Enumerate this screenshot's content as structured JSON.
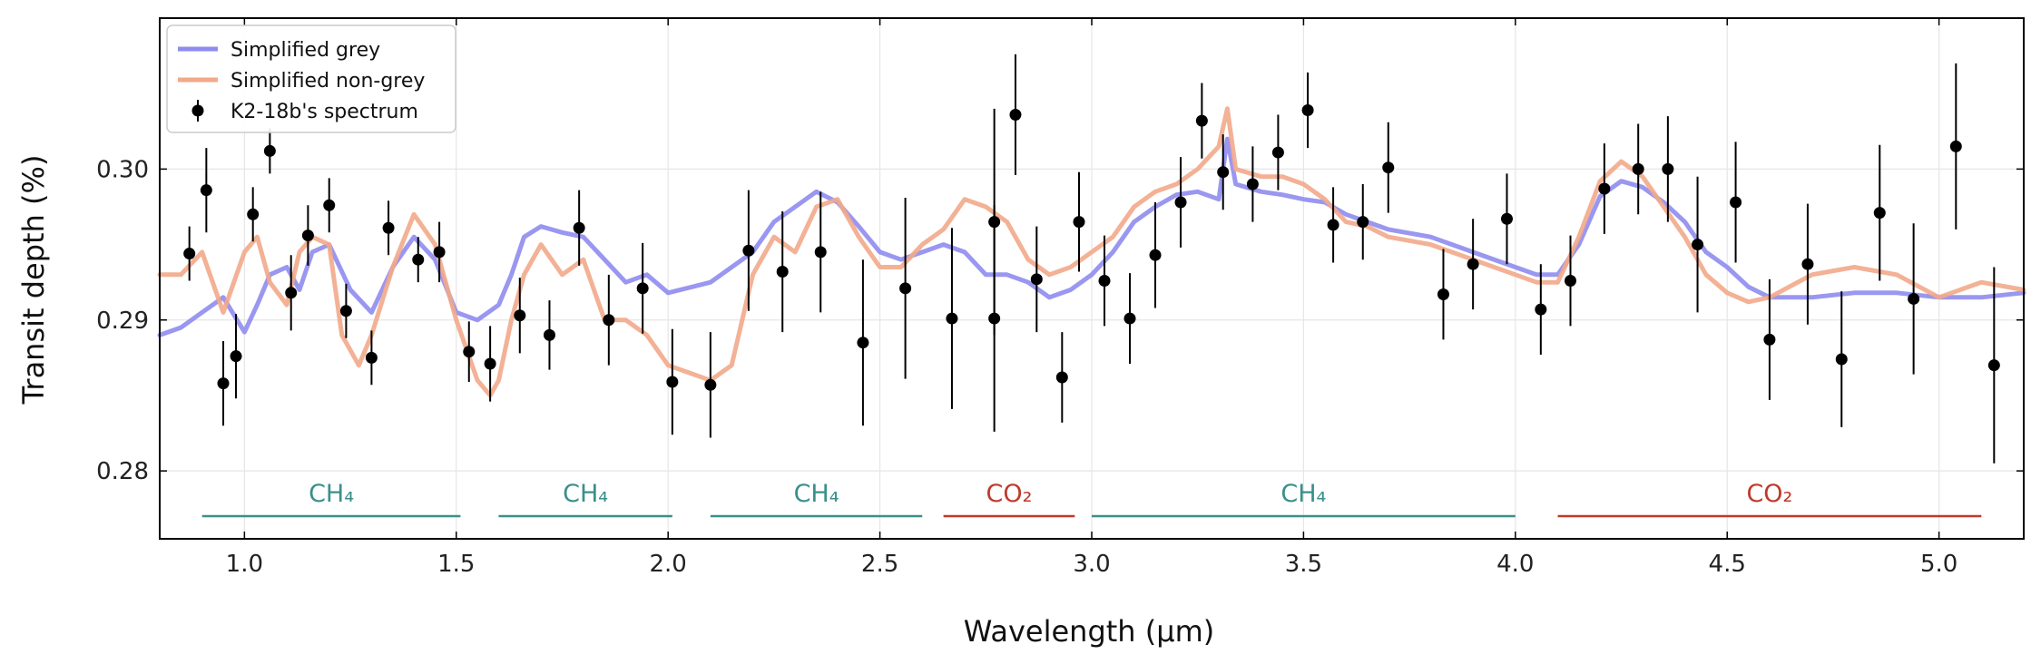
{
  "chart_data": {
    "type": "line",
    "title": "",
    "xlabel": "Wavelength (μm)",
    "ylabel": "Transit depth (%)",
    "xlim": [
      0.8,
      5.2
    ],
    "ylim": [
      0.2755,
      0.31
    ],
    "xticks": [
      1.0,
      1.5,
      2.0,
      2.5,
      3.0,
      3.5,
      4.0,
      4.5,
      5.0
    ],
    "xtick_labels": [
      "1.0",
      "1.5",
      "2.0",
      "2.5",
      "3.0",
      "3.5",
      "4.0",
      "4.5",
      "5.0"
    ],
    "yticks": [
      0.28,
      0.29,
      0.3
    ],
    "ytick_labels": [
      "0.28",
      "0.29",
      "0.30"
    ],
    "grid": true,
    "legend_position": "top-left",
    "legend": [
      "Simplified grey",
      "Simplified non-grey",
      "K2-18b's spectrum"
    ],
    "colors": {
      "grey_model": "#8f8cf0",
      "nongrey_model": "#f2a88a",
      "data": "#000000",
      "ch4": "#3a8f8a",
      "co2": "#c0392b"
    },
    "series": [
      {
        "name": "Simplified grey",
        "x": [
          0.8,
          0.85,
          0.9,
          0.95,
          1.0,
          1.03,
          1.06,
          1.1,
          1.13,
          1.16,
          1.2,
          1.25,
          1.3,
          1.35,
          1.4,
          1.45,
          1.5,
          1.55,
          1.6,
          1.63,
          1.66,
          1.7,
          1.75,
          1.8,
          1.85,
          1.9,
          1.95,
          2.0,
          2.1,
          2.2,
          2.25,
          2.3,
          2.35,
          2.4,
          2.45,
          2.5,
          2.55,
          2.6,
          2.65,
          2.7,
          2.75,
          2.8,
          2.85,
          2.9,
          2.95,
          3.0,
          3.05,
          3.1,
          3.15,
          3.2,
          3.25,
          3.3,
          3.32,
          3.34,
          3.4,
          3.45,
          3.5,
          3.55,
          3.6,
          3.65,
          3.7,
          3.8,
          3.9,
          4.0,
          4.05,
          4.1,
          4.15,
          4.2,
          4.25,
          4.3,
          4.35,
          4.4,
          4.45,
          4.5,
          4.55,
          4.6,
          4.7,
          4.8,
          4.9,
          5.0,
          5.1,
          5.2
        ],
        "y": [
          0.289,
          0.2895,
          0.2905,
          0.2915,
          0.2892,
          0.291,
          0.293,
          0.2935,
          0.292,
          0.2945,
          0.295,
          0.292,
          0.2905,
          0.2935,
          0.2955,
          0.294,
          0.2905,
          0.29,
          0.291,
          0.293,
          0.2955,
          0.2962,
          0.2958,
          0.2955,
          0.294,
          0.2925,
          0.293,
          0.2918,
          0.2925,
          0.2945,
          0.2965,
          0.2975,
          0.2985,
          0.2978,
          0.2962,
          0.2945,
          0.294,
          0.2945,
          0.295,
          0.2945,
          0.293,
          0.293,
          0.2925,
          0.2915,
          0.292,
          0.293,
          0.2945,
          0.2965,
          0.2975,
          0.2983,
          0.2985,
          0.298,
          0.302,
          0.299,
          0.2985,
          0.2983,
          0.298,
          0.2978,
          0.297,
          0.2965,
          0.296,
          0.2955,
          0.2945,
          0.2935,
          0.293,
          0.293,
          0.295,
          0.2982,
          0.2992,
          0.2988,
          0.2978,
          0.2965,
          0.2945,
          0.2935,
          0.2922,
          0.2915,
          0.2915,
          0.2918,
          0.2918,
          0.2915,
          0.2915,
          0.2918
        ]
      },
      {
        "name": "Simplified non-grey",
        "x": [
          0.8,
          0.85,
          0.9,
          0.95,
          1.0,
          1.03,
          1.06,
          1.1,
          1.13,
          1.16,
          1.2,
          1.23,
          1.27,
          1.3,
          1.35,
          1.4,
          1.45,
          1.5,
          1.55,
          1.58,
          1.6,
          1.63,
          1.66,
          1.7,
          1.75,
          1.8,
          1.85,
          1.9,
          1.95,
          2.0,
          2.05,
          2.1,
          2.15,
          2.2,
          2.25,
          2.3,
          2.35,
          2.4,
          2.45,
          2.5,
          2.55,
          2.6,
          2.65,
          2.7,
          2.75,
          2.8,
          2.85,
          2.9,
          2.95,
          3.0,
          3.05,
          3.1,
          3.15,
          3.2,
          3.25,
          3.3,
          3.32,
          3.34,
          3.4,
          3.45,
          3.5,
          3.55,
          3.6,
          3.65,
          3.7,
          3.8,
          3.9,
          4.0,
          4.05,
          4.1,
          4.15,
          4.2,
          4.25,
          4.3,
          4.35,
          4.4,
          4.45,
          4.5,
          4.55,
          4.6,
          4.7,
          4.8,
          4.9,
          5.0,
          5.1,
          5.2
        ],
        "y": [
          0.293,
          0.293,
          0.2945,
          0.2905,
          0.2945,
          0.2955,
          0.2925,
          0.291,
          0.2945,
          0.2955,
          0.295,
          0.289,
          0.287,
          0.289,
          0.2935,
          0.297,
          0.295,
          0.29,
          0.286,
          0.285,
          0.286,
          0.29,
          0.293,
          0.295,
          0.293,
          0.294,
          0.29,
          0.29,
          0.289,
          0.287,
          0.2865,
          0.286,
          0.287,
          0.293,
          0.2955,
          0.2945,
          0.2975,
          0.298,
          0.2955,
          0.2935,
          0.2935,
          0.295,
          0.296,
          0.298,
          0.2975,
          0.2965,
          0.294,
          0.293,
          0.2935,
          0.2945,
          0.2955,
          0.2975,
          0.2985,
          0.299,
          0.3,
          0.3015,
          0.304,
          0.3,
          0.2995,
          0.2995,
          0.299,
          0.298,
          0.2965,
          0.2962,
          0.2955,
          0.295,
          0.294,
          0.293,
          0.2925,
          0.2925,
          0.2955,
          0.2992,
          0.3005,
          0.2995,
          0.2975,
          0.2955,
          0.293,
          0.2918,
          0.2912,
          0.2915,
          0.293,
          0.2935,
          0.293,
          0.2915,
          0.2925,
          0.292
        ]
      },
      {
        "name": "K2-18b's spectrum",
        "x": [
          0.87,
          0.91,
          0.95,
          0.98,
          1.02,
          1.06,
          1.11,
          1.15,
          1.2,
          1.24,
          1.3,
          1.34,
          1.41,
          1.46,
          1.53,
          1.58,
          1.65,
          1.72,
          1.79,
          1.86,
          1.94,
          2.01,
          2.1,
          2.19,
          2.27,
          2.36,
          2.46,
          2.56,
          2.67,
          2.77,
          2.77,
          2.82,
          2.87,
          2.93,
          2.97,
          3.03,
          3.09,
          3.15,
          3.21,
          3.26,
          3.31,
          3.38,
          3.44,
          3.51,
          3.57,
          3.64,
          3.7,
          3.83,
          3.9,
          3.98,
          4.06,
          4.13,
          4.21,
          4.29,
          4.36,
          4.43,
          4.52,
          4.6,
          4.69,
          4.77,
          4.86,
          4.94,
          5.04,
          5.13
        ],
        "y": [
          0.2944,
          0.2986,
          0.2858,
          0.2876,
          0.297,
          0.3012,
          0.2918,
          0.2956,
          0.2976,
          0.2906,
          0.2875,
          0.2961,
          0.294,
          0.2945,
          0.2879,
          0.2871,
          0.2903,
          0.289,
          0.2961,
          0.29,
          0.2921,
          0.2859,
          0.2857,
          0.2946,
          0.2932,
          0.2945,
          0.2885,
          0.2921,
          0.2901,
          0.2965,
          0.2901,
          0.3036,
          0.2927,
          0.2862,
          0.2965,
          0.2926,
          0.2901,
          0.2943,
          0.2978,
          0.3032,
          0.2998,
          0.299,
          0.3011,
          0.3039,
          0.2963,
          0.2965,
          0.3001,
          0.2917,
          0.2937,
          0.2967,
          0.2907,
          0.2926,
          0.2987,
          0.3,
          0.3,
          0.295,
          0.2978,
          0.2887,
          0.2937,
          0.2874,
          0.2971,
          0.2914,
          0.3015,
          0.287
        ],
        "yerr": [
          0.0018,
          0.0028,
          0.0028,
          0.0028,
          0.0018,
          0.0015,
          0.0025,
          0.002,
          0.0018,
          0.0018,
          0.0018,
          0.0018,
          0.0015,
          0.002,
          0.002,
          0.0025,
          0.0025,
          0.0023,
          0.0025,
          0.003,
          0.003,
          0.0035,
          0.0035,
          0.004,
          0.004,
          0.004,
          0.0055,
          0.006,
          0.006,
          0.0075,
          0.0075,
          0.004,
          0.0035,
          0.003,
          0.0033,
          0.003,
          0.003,
          0.0035,
          0.003,
          0.0025,
          0.0025,
          0.0025,
          0.0025,
          0.0025,
          0.0025,
          0.0025,
          0.003,
          0.003,
          0.003,
          0.003,
          0.003,
          0.003,
          0.003,
          0.003,
          0.0035,
          0.0045,
          0.004,
          0.004,
          0.004,
          0.0045,
          0.0045,
          0.005,
          0.0055,
          0.0065
        ]
      }
    ],
    "bands": [
      {
        "label": "CH₄",
        "x0": 0.9,
        "x1": 1.51,
        "color": "#3a8f8a"
      },
      {
        "label": "CH₄",
        "x0": 1.6,
        "x1": 2.01,
        "color": "#3a8f8a"
      },
      {
        "label": "CH₄",
        "x0": 2.1,
        "x1": 2.6,
        "color": "#3a8f8a"
      },
      {
        "label": "CO₂",
        "x0": 2.65,
        "x1": 2.96,
        "color": "#c0392b"
      },
      {
        "label": "CH₄",
        "x0": 3.0,
        "x1": 4.0,
        "color": "#3a8f8a"
      },
      {
        "label": "CO₂",
        "x0": 4.1,
        "x1": 5.1,
        "color": "#c0392b"
      }
    ],
    "band_line_y": 0.277,
    "band_label_y": 0.2785
  }
}
